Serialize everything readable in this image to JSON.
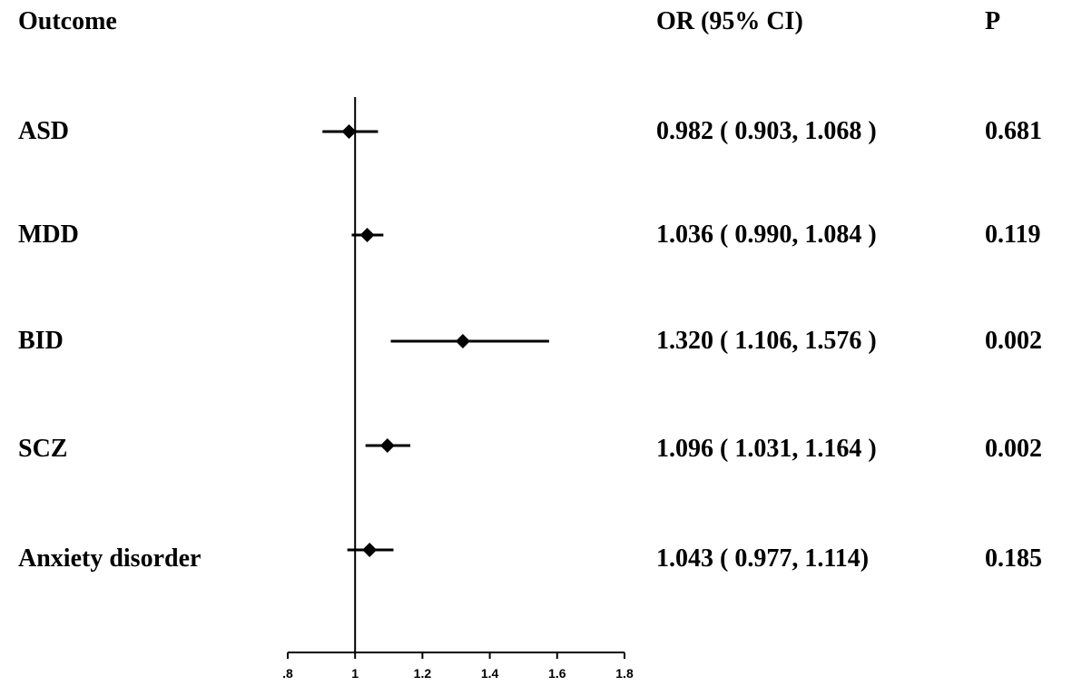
{
  "headers": {
    "outcome": "Outcome",
    "or_ci": "OR (95% CI)",
    "p": "P"
  },
  "chart_data": {
    "type": "forest",
    "reference_line": 1,
    "xlim": [
      0.8,
      1.8
    ],
    "x_ticks": [
      0.8,
      1.0,
      1.2,
      1.4,
      1.6,
      1.8
    ],
    "x_tick_labels": [
      ".8",
      "1",
      "1.2",
      "1.4",
      "1.6",
      "1.8"
    ],
    "rows": [
      {
        "outcome": "ASD",
        "or": 0.982,
        "lo": 0.903,
        "hi": 1.068,
        "or_ci_text": "0.982 ( 0.903, 1.068 )",
        "p": "0.681"
      },
      {
        "outcome": "MDD",
        "or": 1.036,
        "lo": 0.99,
        "hi": 1.084,
        "or_ci_text": "1.036 ( 0.990, 1.084 )",
        "p": "0.119"
      },
      {
        "outcome": "BID",
        "or": 1.32,
        "lo": 1.106,
        "hi": 1.576,
        "or_ci_text": "1.320 ( 1.106, 1.576 )",
        "p": "0.002"
      },
      {
        "outcome": "SCZ",
        "or": 1.096,
        "lo": 1.031,
        "hi": 1.164,
        "or_ci_text": "1.096 ( 1.031, 1.164 )",
        "p": "0.002"
      },
      {
        "outcome": "Anxiety disorder",
        "or": 1.043,
        "lo": 0.977,
        "hi": 1.114,
        "or_ci_text": "1.043 ( 0.977, 1.114)",
        "p": "0.185"
      }
    ]
  }
}
